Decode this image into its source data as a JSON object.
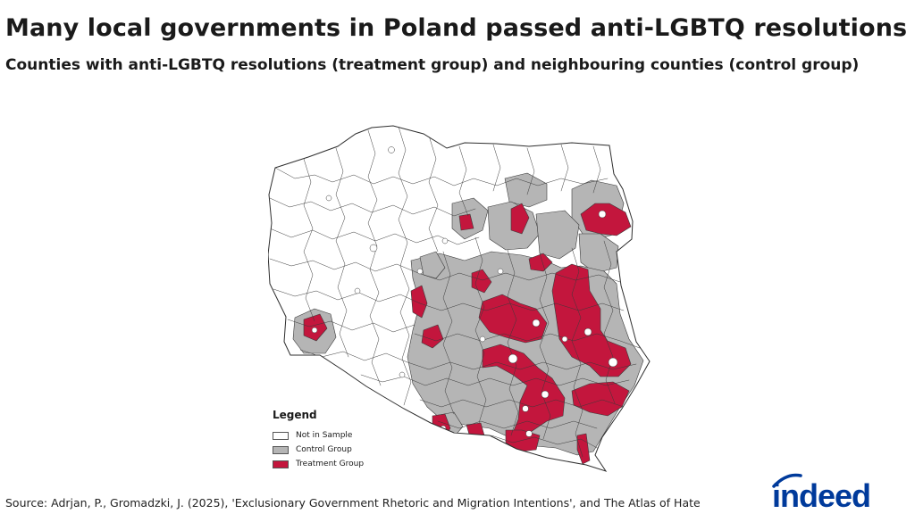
{
  "title": "Many local governments in Poland passed anti-LGBTQ resolutions",
  "subtitle": "Counties with anti-LGBTQ resolutions (treatment group) and neighbouring counties (control group)",
  "legend": {
    "title": "Legend",
    "items": [
      {
        "label": "Not in Sample",
        "color": "#ffffff"
      },
      {
        "label": "Control Group",
        "color": "#b5b5b5"
      },
      {
        "label": "Treatment Group",
        "color": "#c3163d"
      }
    ]
  },
  "source": "Source: Adrjan, P., Gromadzki, J. (2025), 'Exclusionary Government Rhetoric and Migration Intentions', and The Atlas of Hate",
  "brand": {
    "logo_text": "indeed",
    "color": "#003a9b"
  },
  "colors": {
    "border": "#3a3a3a"
  }
}
